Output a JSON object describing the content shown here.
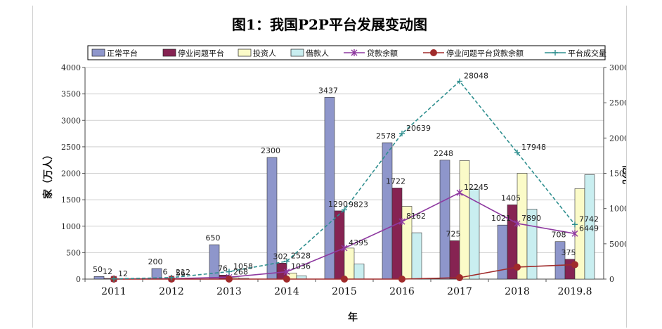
{
  "colors": {
    "normal": "#8e96cb",
    "problem": "#862352",
    "investors": "#fbfbc8",
    "borrowers": "#c9eef0",
    "loan_balance": "#8e39a0",
    "problem_balance": "#a02b2b",
    "volume": "#2f8f8f"
  },
  "chart_data": {
    "type": "bar",
    "title": "图1：我国P2P平台发展变动图",
    "xlabel": "年",
    "ylabel": "家（万人）",
    "y2label": "亿元",
    "categories": [
      "2011",
      "2012",
      "2013",
      "2014",
      "2015",
      "2016",
      "2017",
      "2018",
      "2019.8"
    ],
    "ylim": [
      0,
      4000
    ],
    "yticks": [
      0,
      500,
      1000,
      1500,
      2000,
      2500,
      3000,
      3500,
      4000
    ],
    "y2lim": [
      0,
      30000
    ],
    "y2ticks": [
      0,
      5000,
      10000,
      15000,
      20000,
      25000,
      30000
    ],
    "grid": true,
    "legend_position": "top",
    "bar_series": [
      {
        "name": "正常平台",
        "color_key": "normal",
        "values": [
          50,
          200,
          650,
          2300,
          3437,
          2578,
          2248,
          1021,
          708
        ],
        "labels": [
          "50",
          "200",
          "650",
          "2300",
          "3437",
          "2578",
          "2248",
          "1021",
          "708"
        ]
      },
      {
        "name": "停业问题平台",
        "color_key": "problem",
        "values": [
          12,
          6,
          76,
          302,
          1290,
          1722,
          725,
          1405,
          375
        ],
        "labels": [
          "12",
          "6",
          "76",
          "302",
          "1290",
          "1722",
          "725",
          "1405",
          "375"
        ]
      },
      {
        "name": "投资人",
        "color_key": "investors",
        "values": [
          4,
          15,
          25,
          116,
          586,
          1375,
          2240,
          2000,
          1710
        ],
        "labels": [
          "",
          "",
          "",
          "",
          "",
          "",
          "",
          "",
          ""
        ]
      },
      {
        "name": "借款人",
        "color_key": "borrowers",
        "values": [
          1,
          5,
          15,
          63,
          285,
          876,
          1700,
          1322,
          1975
        ],
        "labels": [
          "",
          "",
          "",
          "",
          "",
          "",
          "",
          "",
          ""
        ]
      }
    ],
    "line_series": [
      {
        "name": "贷款余额",
        "color_key": "loan_balance",
        "marker": "star",
        "values": [
          12,
          56,
          268,
          1036,
          4395,
          8162,
          12245,
          7890,
          6449
        ],
        "labels": [
          "12",
          "56",
          "268",
          "1036",
          "4395",
          "8162",
          "12245",
          "7890",
          "6449"
        ]
      },
      {
        "name": "停业问题平台贷款余额",
        "color_key": "problem_balance",
        "marker": "dot",
        "values": [
          0,
          0,
          0,
          0,
          0,
          0,
          200,
          1700,
          2050
        ],
        "labels": [
          "",
          "",
          "",
          "",
          "",
          "",
          "",
          "",
          ""
        ]
      },
      {
        "name": "平台成交量",
        "color_key": "volume",
        "marker": "plus",
        "values": [
          31,
          212,
          1058,
          2528,
          9823,
          20639,
          28048,
          17948,
          7742
        ],
        "labels": [
          "",
          "212",
          "1058",
          "2528",
          "9823",
          "20639",
          "28048",
          "17948",
          "7742"
        ]
      }
    ]
  }
}
